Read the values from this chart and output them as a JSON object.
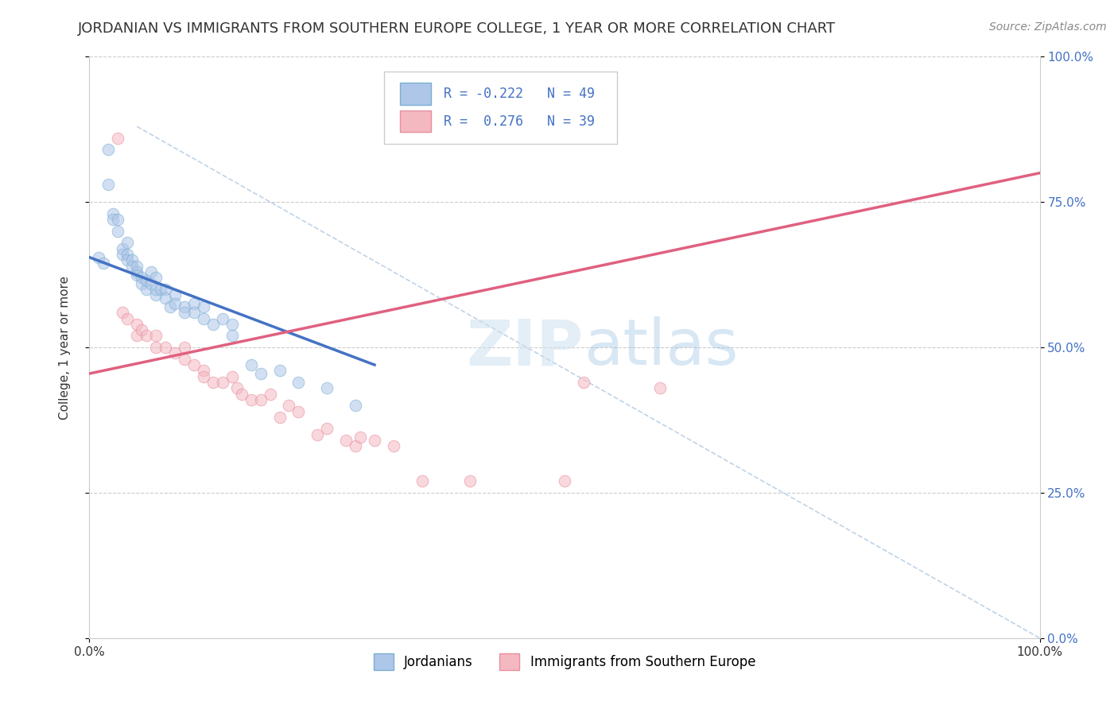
{
  "title": "JORDANIAN VS IMMIGRANTS FROM SOUTHERN EUROPE COLLEGE, 1 YEAR OR MORE CORRELATION CHART",
  "source": "Source: ZipAtlas.com",
  "ylabel": "College, 1 year or more",
  "xlim": [
    0.0,
    1.0
  ],
  "ylim": [
    0.0,
    1.0
  ],
  "xtick_labels": [
    "0.0%",
    "100.0%"
  ],
  "xtick_values": [
    0.0,
    1.0
  ],
  "ytick_labels": [
    "0.0%",
    "25.0%",
    "50.0%",
    "75.0%",
    "100.0%"
  ],
  "ytick_values": [
    0.0,
    0.25,
    0.5,
    0.75,
    1.0
  ],
  "R_blue": -0.222,
  "N_blue": 49,
  "R_pink": 0.276,
  "N_pink": 39,
  "blue_scatter_x": [
    0.01,
    0.015,
    0.02,
    0.02,
    0.025,
    0.025,
    0.03,
    0.03,
    0.035,
    0.035,
    0.04,
    0.04,
    0.04,
    0.045,
    0.045,
    0.05,
    0.05,
    0.05,
    0.055,
    0.055,
    0.06,
    0.06,
    0.065,
    0.065,
    0.07,
    0.07,
    0.07,
    0.075,
    0.08,
    0.08,
    0.085,
    0.09,
    0.09,
    0.1,
    0.1,
    0.11,
    0.11,
    0.12,
    0.12,
    0.13,
    0.14,
    0.15,
    0.15,
    0.17,
    0.18,
    0.2,
    0.22,
    0.25,
    0.28
  ],
  "blue_scatter_y": [
    0.655,
    0.645,
    0.84,
    0.78,
    0.73,
    0.72,
    0.72,
    0.7,
    0.67,
    0.66,
    0.68,
    0.66,
    0.65,
    0.65,
    0.64,
    0.64,
    0.63,
    0.625,
    0.62,
    0.61,
    0.6,
    0.615,
    0.63,
    0.61,
    0.59,
    0.62,
    0.6,
    0.6,
    0.6,
    0.585,
    0.57,
    0.59,
    0.575,
    0.57,
    0.56,
    0.575,
    0.56,
    0.57,
    0.55,
    0.54,
    0.55,
    0.54,
    0.52,
    0.47,
    0.455,
    0.46,
    0.44,
    0.43,
    0.4
  ],
  "pink_scatter_x": [
    0.03,
    0.035,
    0.04,
    0.05,
    0.05,
    0.055,
    0.06,
    0.07,
    0.07,
    0.08,
    0.09,
    0.1,
    0.1,
    0.11,
    0.12,
    0.12,
    0.13,
    0.14,
    0.15,
    0.155,
    0.16,
    0.17,
    0.18,
    0.19,
    0.2,
    0.21,
    0.22,
    0.24,
    0.25,
    0.27,
    0.28,
    0.285,
    0.3,
    0.32,
    0.35,
    0.4,
    0.5,
    0.52,
    0.6
  ],
  "pink_scatter_y": [
    0.86,
    0.56,
    0.55,
    0.54,
    0.52,
    0.53,
    0.52,
    0.52,
    0.5,
    0.5,
    0.49,
    0.5,
    0.48,
    0.47,
    0.46,
    0.45,
    0.44,
    0.44,
    0.45,
    0.43,
    0.42,
    0.41,
    0.41,
    0.42,
    0.38,
    0.4,
    0.39,
    0.35,
    0.36,
    0.34,
    0.33,
    0.345,
    0.34,
    0.33,
    0.27,
    0.27,
    0.27,
    0.44,
    0.43
  ],
  "blue_line_x": [
    0.0,
    0.3
  ],
  "blue_line_y": [
    0.655,
    0.47
  ],
  "pink_line_x": [
    0.0,
    1.0
  ],
  "pink_line_y": [
    0.455,
    0.8
  ],
  "dashed_line_x": [
    0.05,
    1.0
  ],
  "dashed_line_y": [
    0.88,
    0.0
  ],
  "blue_color": "#aec6e8",
  "pink_color": "#f4b8c1",
  "blue_edge_color": "#7bafd4",
  "pink_edge_color": "#e88fa0",
  "blue_line_color": "#4472c4",
  "pink_line_color": "#e06080",
  "grid_color": "#cccccc",
  "background_color": "#ffffff",
  "title_fontsize": 13,
  "label_fontsize": 11,
  "tick_fontsize": 11,
  "legend_fontsize": 12,
  "source_fontsize": 10,
  "scatter_size": 110,
  "scatter_alpha": 0.55
}
